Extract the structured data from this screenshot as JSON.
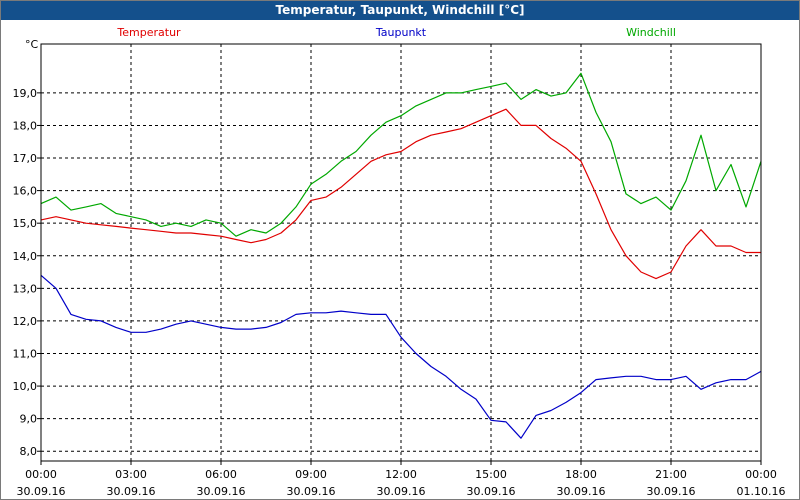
{
  "chart_data": {
    "type": "line",
    "title": "Temperatur, Taupunkt, Windchill [°C]",
    "ylabel": "°C",
    "ylim": [
      7.7,
      20.5
    ],
    "xlim": [
      0,
      24
    ],
    "grid": true,
    "yticks": [
      8,
      9,
      10,
      11,
      12,
      13,
      14,
      15,
      16,
      17,
      18,
      19
    ],
    "ytick_labels": [
      "8,0",
      "9,0",
      "10,0",
      "11,0",
      "12,0",
      "13,0",
      "14,0",
      "15,0",
      "16,0",
      "17,0",
      "18,0",
      "19,0"
    ],
    "xticks": [
      0,
      3,
      6,
      9,
      12,
      15,
      18,
      21,
      24
    ],
    "xtick_labels": [
      {
        "time": "00:00",
        "date": "30.09.16"
      },
      {
        "time": "03:00",
        "date": "30.09.16"
      },
      {
        "time": "06:00",
        "date": "30.09.16"
      },
      {
        "time": "09:00",
        "date": "30.09.16"
      },
      {
        "time": "12:00",
        "date": "30.09.16"
      },
      {
        "time": "15:00",
        "date": "30.09.16"
      },
      {
        "time": "18:00",
        "date": "30.09.16"
      },
      {
        "time": "21:00",
        "date": "30.09.16"
      },
      {
        "time": "00:00",
        "date": "01.10.16"
      }
    ],
    "series": [
      {
        "name": "Temperatur",
        "color": "#e00000",
        "x": [
          0,
          0.5,
          1,
          1.5,
          2,
          2.5,
          3,
          3.5,
          4,
          4.5,
          5,
          5.5,
          6,
          6.5,
          7,
          7.5,
          8,
          8.5,
          9,
          9.5,
          10,
          10.5,
          11,
          11.5,
          12,
          12.5,
          13,
          13.5,
          14,
          14.5,
          15,
          15.5,
          16,
          16.5,
          17,
          17.5,
          18,
          18.5,
          19,
          19.5,
          20,
          20.5,
          21,
          21.5,
          22,
          22.5,
          23,
          23.5,
          24
        ],
        "values": [
          15.1,
          15.2,
          15.1,
          15.0,
          14.95,
          14.9,
          14.85,
          14.8,
          14.75,
          14.7,
          14.7,
          14.65,
          14.6,
          14.5,
          14.4,
          14.5,
          14.7,
          15.1,
          15.7,
          15.8,
          16.1,
          16.5,
          16.9,
          17.1,
          17.2,
          17.5,
          17.7,
          17.8,
          17.9,
          18.1,
          18.3,
          18.5,
          18.0,
          18.0,
          17.6,
          17.3,
          16.9,
          15.9,
          14.8,
          14.0,
          13.5,
          13.3,
          13.5,
          14.3,
          14.8,
          14.3,
          14.3,
          14.1,
          14.1
        ]
      },
      {
        "name": "Taupunkt",
        "color": "#0000c8",
        "x": [
          0,
          0.5,
          1,
          1.5,
          2,
          2.5,
          3,
          3.5,
          4,
          4.5,
          5,
          5.5,
          6,
          6.5,
          7,
          7.5,
          8,
          8.5,
          9,
          9.5,
          10,
          10.5,
          11,
          11.5,
          12,
          12.5,
          13,
          13.5,
          14,
          14.5,
          15,
          15.5,
          16,
          16.5,
          17,
          17.5,
          18,
          18.5,
          19,
          19.5,
          20,
          20.5,
          21,
          21.5,
          22,
          22.5,
          23,
          23.5,
          24
        ],
        "values": [
          13.4,
          13.0,
          12.2,
          12.05,
          12.0,
          11.8,
          11.65,
          11.65,
          11.75,
          11.9,
          12.0,
          11.9,
          11.8,
          11.75,
          11.75,
          11.8,
          11.95,
          12.2,
          12.25,
          12.25,
          12.3,
          12.25,
          12.2,
          12.2,
          11.5,
          11.0,
          10.6,
          10.3,
          9.9,
          9.6,
          8.95,
          8.9,
          8.4,
          9.1,
          9.25,
          9.5,
          9.8,
          10.2,
          10.25,
          10.3,
          10.3,
          10.2,
          10.2,
          10.3,
          9.9,
          10.1,
          10.2,
          10.2,
          10.45
        ]
      },
      {
        "name": "Windchill",
        "color": "#00a800",
        "x": [
          0,
          0.5,
          1,
          1.5,
          2,
          2.5,
          3,
          3.5,
          4,
          4.5,
          5,
          5.5,
          6,
          6.5,
          7,
          7.5,
          8,
          8.5,
          9,
          9.5,
          10,
          10.5,
          11,
          11.5,
          12,
          12.5,
          13,
          13.5,
          14,
          14.5,
          15,
          15.5,
          16,
          16.5,
          17,
          17.5,
          18,
          18.5,
          19,
          19.5,
          20,
          20.5,
          21,
          21.5,
          22,
          22.5,
          23,
          23.5,
          24
        ],
        "values": [
          15.6,
          15.8,
          15.4,
          15.5,
          15.6,
          15.3,
          15.2,
          15.1,
          14.9,
          15.0,
          14.9,
          15.1,
          15.0,
          14.6,
          14.8,
          14.7,
          15.0,
          15.5,
          16.2,
          16.5,
          16.9,
          17.2,
          17.7,
          18.1,
          18.3,
          18.6,
          18.8,
          19.0,
          19.0,
          19.1,
          19.2,
          19.3,
          18.8,
          19.1,
          18.9,
          19.0,
          19.6,
          18.4,
          17.5,
          15.9,
          15.6,
          15.8,
          15.4,
          16.3,
          17.7,
          16.0,
          16.8,
          15.5,
          16.9
        ]
      }
    ]
  }
}
